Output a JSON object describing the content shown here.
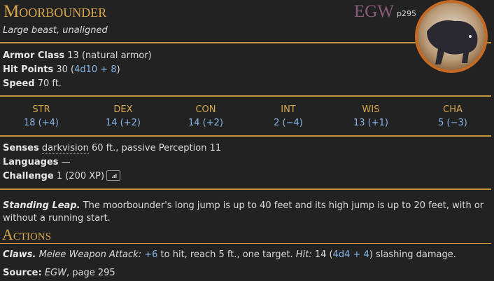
{
  "header": {
    "name": "Moorbounder",
    "source": "EGW",
    "page": "p295",
    "subtitle": "Large beast, unaligned"
  },
  "armor_class": {
    "label": "Armor Class",
    "text": "13 (natural armor)"
  },
  "hit_points": {
    "label": "Hit Points",
    "text": "30 (",
    "roll": "4d10 + 8",
    "close": ")"
  },
  "speed": {
    "label": "Speed",
    "text": "70 ft."
  },
  "abilities": [
    {
      "name": "STR",
      "score": "18 (+4)"
    },
    {
      "name": "DEX",
      "score": "14 (+2)"
    },
    {
      "name": "CON",
      "score": "14 (+2)"
    },
    {
      "name": "INT",
      "score": "2 (−4)"
    },
    {
      "name": "WIS",
      "score": "13 (+1)"
    },
    {
      "name": "CHA",
      "score": "5 (−3)"
    }
  ],
  "senses": {
    "label": "Senses",
    "sense": "darkvision",
    "text": "60 ft., passive Perception 11"
  },
  "languages": {
    "label": "Languages",
    "text": "—"
  },
  "challenge": {
    "label": "Challenge",
    "text": "1 (200 XP)"
  },
  "traits": [
    {
      "name": "Standing Leap.",
      "text": "The moorbounder's long jump is up to 40 feet and its high jump is up to 20 feet, with or without a running start."
    }
  ],
  "actions": {
    "heading": "Actions",
    "items": [
      {
        "name": "Claws.",
        "attack": "Melee Weapon Attack:",
        "bonus": "+6",
        "text": "to hit, reach 5 ft., one target.",
        "hit": "Hit:",
        "damage": "14 (",
        "roll": "4d4 + 4",
        "after": ") slashing damage."
      }
    ]
  },
  "source": {
    "label": "Source:",
    "book": "EGW",
    "text": ", page 295"
  }
}
